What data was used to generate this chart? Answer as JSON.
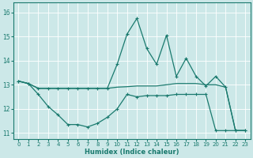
{
  "xlabel": "Humidex (Indice chaleur)",
  "bg_color": "#cce8e8",
  "line_color": "#1a7a6e",
  "grid_color": "#ffffff",
  "xlim": [
    -0.5,
    23.5
  ],
  "ylim": [
    10.75,
    16.4
  ],
  "xticks": [
    0,
    1,
    2,
    3,
    4,
    5,
    6,
    7,
    8,
    9,
    10,
    11,
    12,
    13,
    14,
    15,
    16,
    17,
    18,
    19,
    20,
    21,
    22,
    23
  ],
  "yticks": [
    11,
    12,
    13,
    14,
    15,
    16
  ],
  "line1_x": [
    0,
    1,
    2,
    3,
    4,
    5,
    6,
    7,
    8,
    9,
    10,
    11,
    12,
    13,
    14,
    15,
    16,
    17,
    18,
    19,
    20,
    21,
    22,
    23
  ],
  "line1_y": [
    13.15,
    13.05,
    12.85,
    12.85,
    12.85,
    12.85,
    12.85,
    12.85,
    12.85,
    12.85,
    12.9,
    12.92,
    12.95,
    12.95,
    12.95,
    13.0,
    13.05,
    13.05,
    13.05,
    13.0,
    13.0,
    12.9,
    11.1,
    11.1
  ],
  "line2_x": [
    0,
    1,
    2,
    3,
    4,
    5,
    6,
    7,
    8,
    9,
    10,
    11,
    12,
    13,
    14,
    15,
    16,
    17,
    18,
    19,
    20,
    21,
    22,
    23
  ],
  "line2_y": [
    13.15,
    13.05,
    12.85,
    12.85,
    12.85,
    12.85,
    12.85,
    12.85,
    12.85,
    12.85,
    13.85,
    15.1,
    15.75,
    14.5,
    13.85,
    15.05,
    13.35,
    14.1,
    13.35,
    12.95,
    13.35,
    12.9,
    11.1,
    11.1
  ],
  "line3_x": [
    0,
    1,
    2,
    3,
    4,
    5,
    6,
    7,
    8,
    9,
    10,
    11,
    12,
    13,
    14,
    15,
    16,
    17,
    18,
    19,
    20,
    21,
    22,
    23
  ],
  "line3_y": [
    13.15,
    13.05,
    12.6,
    12.1,
    11.75,
    11.35,
    11.35,
    11.25,
    11.4,
    11.65,
    12.0,
    12.6,
    12.5,
    12.55,
    12.55,
    12.55,
    12.6,
    12.6,
    12.6,
    12.6,
    11.1,
    11.1,
    11.1,
    11.1
  ]
}
